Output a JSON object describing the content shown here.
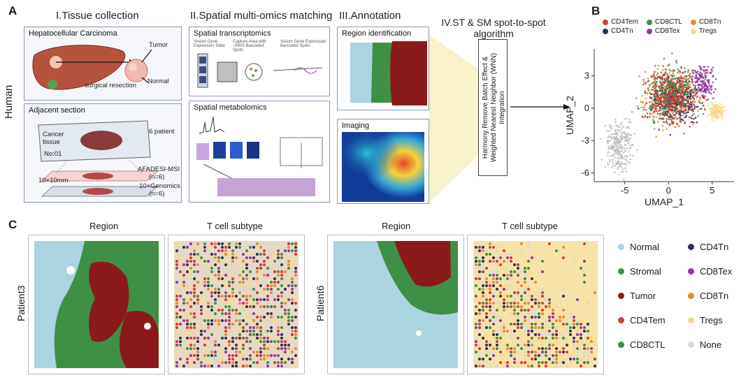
{
  "panelA": {
    "letter": "A",
    "side_label": "Human",
    "sections": {
      "s1": "I.Tissue collection",
      "s2": "II.Spatial multi-omics matching",
      "s3": "III.Annotation",
      "s4": "IV.ST & SM spot-to-spot algorithm"
    },
    "hcc_box": {
      "title": "Hepatocellular Carcinoma",
      "tumor": "Tumor",
      "normal": "Normal",
      "resection": "surgical resection"
    },
    "adjacent_box": {
      "title": "Adjacent section",
      "cancer_tissue": "Cancer tissue",
      "no": "No:01",
      "patients": "6 patient",
      "size": "10×10mm",
      "msi": "AFADESI-MSI",
      "msi_n": "(n=6)",
      "genomics": "10×Genomics",
      "genomics_n": "(n=6)"
    },
    "st_box": {
      "title": "Spatial transcriptomics",
      "label1": "Visium Gene Expression Slide",
      "label2": "Capture Area with ~5000 Barcoded Spots",
      "label3": "Visium Gene Expression Barcoded Spots"
    },
    "sm_box": {
      "title": "Spatial metabolomics"
    },
    "annot_box1": {
      "title": "Region identification"
    },
    "annot_box2": {
      "title": "Imaging"
    },
    "algorithm_text": "Harmony Remove Batch Effect & Weighted Nearest Neighbor (WNN) Integration"
  },
  "panelB": {
    "letter": "B",
    "legend": [
      {
        "name": "CD4Tem",
        "color": "#d23b3b"
      },
      {
        "name": "CD8CTL",
        "color": "#3f8f47"
      },
      {
        "name": "CD8Tn",
        "color": "#e8893a"
      },
      {
        "name": "CD4Tn",
        "color": "#2b2f5c"
      },
      {
        "name": "CD8Tex",
        "color": "#8e3b9b"
      },
      {
        "name": "Tregs",
        "color": "#f5dc8a"
      }
    ]
  },
  "chart_data": {
    "type": "scatter",
    "title": "",
    "xlabel": "UMAP_1",
    "ylabel": "UMAP_2",
    "xticks": [
      "-5",
      "0",
      "5"
    ],
    "yticks": [
      "-6",
      "-3",
      "0",
      "3"
    ],
    "xlim": [
      -8.5,
      7.5
    ],
    "ylim": [
      -6.8,
      5.5
    ],
    "series": [
      {
        "name": "CD4Tem",
        "color": "#d23b3b",
        "center": [
          0.5,
          1.2
        ],
        "spread": [
          2.4,
          2.0
        ]
      },
      {
        "name": "CD8CTL",
        "color": "#3f8f47",
        "center": [
          0.3,
          1.5
        ],
        "spread": [
          2.3,
          1.9
        ]
      },
      {
        "name": "CD8Tn",
        "color": "#e8893a",
        "center": [
          0.0,
          1.0
        ],
        "spread": [
          2.6,
          2.1
        ]
      },
      {
        "name": "CD4Tn",
        "color": "#2b2f5c",
        "center": [
          0.8,
          0.8
        ],
        "spread": [
          2.2,
          1.8
        ]
      },
      {
        "name": "CD8Tex",
        "color": "#8e3b9b",
        "center": [
          4.0,
          2.5
        ],
        "spread": [
          1.0,
          1.2
        ]
      },
      {
        "name": "Tregs",
        "color": "#f5dc8a",
        "center": [
          5.5,
          -0.3
        ],
        "spread": [
          0.7,
          0.6
        ]
      },
      {
        "name": "None",
        "color": "#bdbdbd",
        "center": [
          -5.5,
          -3.5
        ],
        "spread": [
          1.3,
          1.8
        ]
      }
    ]
  },
  "panelC": {
    "letter": "C",
    "tiles": [
      {
        "patient": "Patient3",
        "region_title": "Region",
        "subtype_title": "T cell subtype"
      },
      {
        "patient": "Patient6",
        "region_title": "Region",
        "subtype_title": "T cell subtype"
      }
    ],
    "legend": [
      {
        "name": "Normal",
        "color": "#a9d4e0"
      },
      {
        "name": "CD4Tn",
        "color": "#2b2f5c"
      },
      {
        "name": "Stromal",
        "color": "#3f8f47"
      },
      {
        "name": "CD8Tex",
        "color": "#8e3b9b"
      },
      {
        "name": "Tumor",
        "color": "#8b1a1a"
      },
      {
        "name": "CD8Tn",
        "color": "#e8893a"
      },
      {
        "name": "CD4Tem",
        "color": "#d23b3b"
      },
      {
        "name": "Tregs",
        "color": "#f5dc8a"
      },
      {
        "name": "CD8CTL",
        "color": "#3f8f47"
      },
      {
        "name": "None",
        "color": "#d9d9d9"
      }
    ]
  }
}
